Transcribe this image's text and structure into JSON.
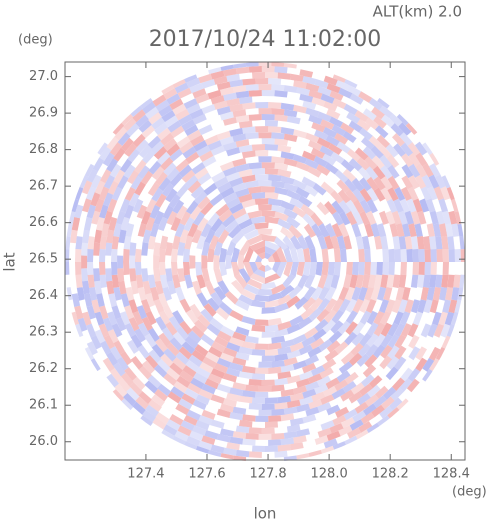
{
  "chart_data": {
    "type": "radar-ppi",
    "title": "2017/10/24 11:02:00",
    "subtitle": "ALT(km) 2.0",
    "x_label": "lon",
    "y_label": "lat",
    "x_unit": "(deg)",
    "y_unit": "(deg)",
    "xlim": [
      127.135,
      128.445
    ],
    "ylim": [
      25.95,
      27.04
    ],
    "xticks": [
      127.4,
      127.6,
      127.8,
      {
        "value": 128.0,
        "label": "128.0"
      },
      128.2,
      128.4
    ],
    "yticks": [
      {
        "value": 26.0,
        "label": "26.0"
      },
      26.1,
      26.2,
      26.3,
      26.4,
      26.5,
      26.6,
      26.7,
      26.8,
      26.9,
      {
        "value": 27.0,
        "label": "27.0"
      }
    ],
    "colors": [
      "#f2a7a7",
      "#b3b8f2"
    ]
  }
}
